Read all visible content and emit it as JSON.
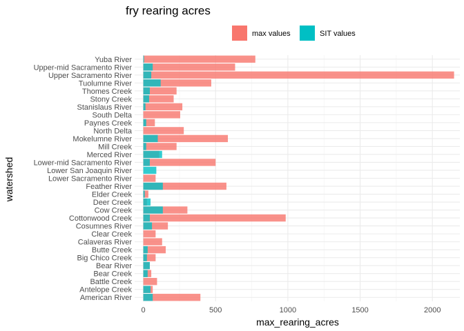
{
  "chart_data": {
    "type": "bar",
    "orientation": "horizontal",
    "title": "fry rearing acres",
    "xlabel": "max_rearing_acres",
    "ylabel": "watershed",
    "xlim": [
      -60,
      2190
    ],
    "xticks": [
      0,
      500,
      1000,
      1500,
      2000
    ],
    "grid": true,
    "legend_position": "top",
    "categories": [
      "American River",
      "Antelope Creek",
      "Battle Creek",
      "Bear Creek",
      "Bear River",
      "Big Chico Creek",
      "Butte Creek",
      "Calaveras River",
      "Clear Creek",
      "Cosumnes River",
      "Cottonwood Creek",
      "Cow Creek",
      "Deer Creek",
      "Elder Creek",
      "Feather River",
      "Lower Sacramento River",
      "Lower San Joaquin River",
      "Lower-mid Sacramento River",
      "Merced River",
      "Mill Creek",
      "Mokelumne River",
      "North Delta",
      "Paynes Creek",
      "South Delta",
      "Stanislaus River",
      "Stony Creek",
      "Thomes Creek",
      "Tuolumne River",
      "Upper Sacramento River",
      "Upper-mid Sacramento River",
      "Yuba River"
    ],
    "series": [
      {
        "name": "max values",
        "color": "#F8766D",
        "values": [
          395,
          65,
          95,
          55,
          45,
          85,
          155,
          130,
          85,
          170,
          985,
          305,
          25,
          35,
          575,
          85,
          0,
          500,
          110,
          230,
          585,
          280,
          80,
          255,
          270,
          210,
          230,
          470,
          2150,
          635,
          775
        ]
      },
      {
        "name": "SIT values",
        "color": "#00BFC4",
        "values": [
          65,
          50,
          0,
          30,
          45,
          25,
          30,
          0,
          0,
          60,
          45,
          135,
          50,
          10,
          135,
          0,
          90,
          45,
          130,
          20,
          100,
          0,
          20,
          0,
          15,
          40,
          45,
          120,
          55,
          65,
          5
        ]
      }
    ]
  }
}
